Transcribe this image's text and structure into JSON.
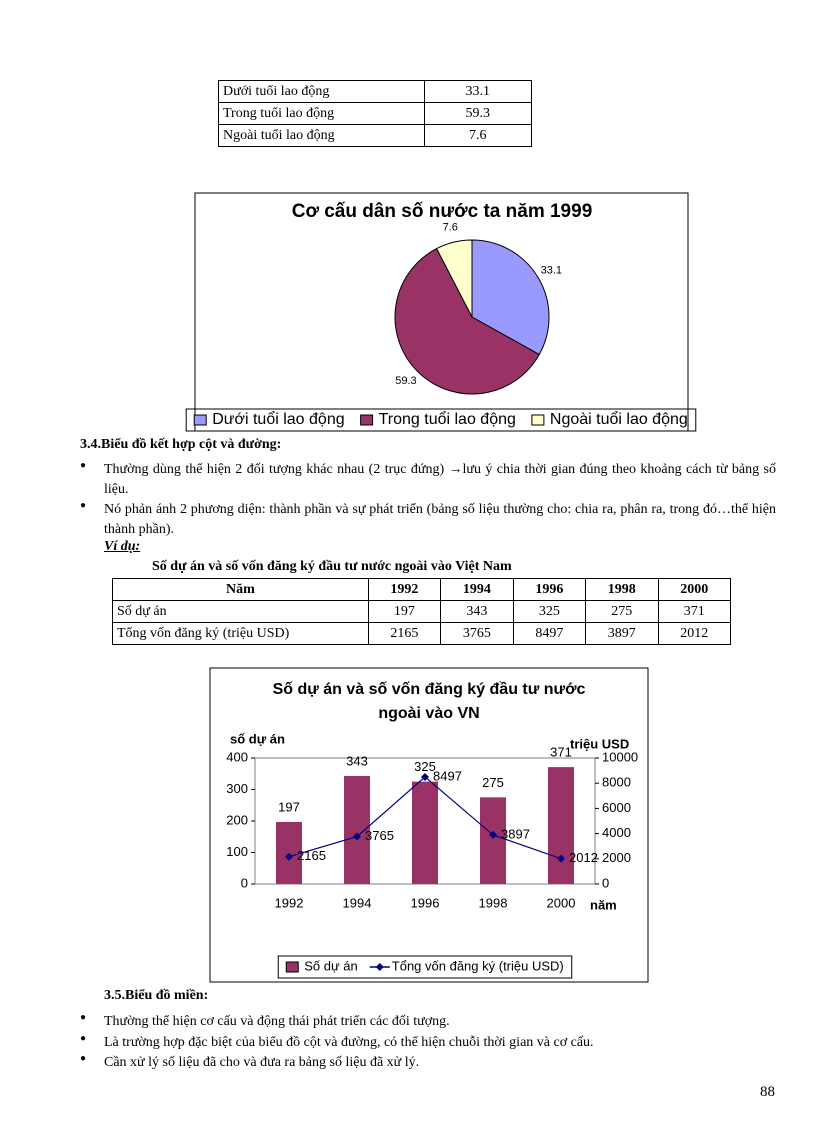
{
  "table1": {
    "rows": [
      [
        "Dưới tuổi lao động",
        "33.1"
      ],
      [
        "Trong tuổi lao động",
        "59.3"
      ],
      [
        "Ngoài tuổi lao động",
        "7.6"
      ]
    ]
  },
  "chart_data": [
    {
      "type": "pie",
      "title": "Cơ cấu dân số nước ta năm 1999",
      "categories": [
        "Dưới tuổi lao động",
        "Trong tuổi lao động",
        "Ngoài tuổi lao động"
      ],
      "values": [
        33.1,
        59.3,
        7.6
      ],
      "colors": [
        "#9999ff",
        "#993366",
        "#ffffcc"
      ],
      "legend": "bottom"
    },
    {
      "type": "bar-line",
      "title": "Số dự án và số vốn đăng ký đầu tư nước ngoài vào VN",
      "ylabel": "số dự án",
      "y2label": "triệu USD",
      "xlabel": "năm",
      "categories": [
        "1992",
        "1994",
        "1996",
        "1998",
        "2000"
      ],
      "series": [
        {
          "name": "Số dự án",
          "color": "#993366",
          "values": [
            197,
            343,
            325,
            275,
            371
          ]
        },
        {
          "name": "Tổng vốn đăng ký (triệu USD)",
          "color": "#000080",
          "axis": "y2",
          "values": [
            2165,
            3765,
            8497,
            3897,
            2012
          ]
        }
      ],
      "ylim": [
        0,
        400
      ],
      "yticks": [
        0,
        100,
        200,
        300,
        400
      ],
      "y2lim": [
        0,
        10000
      ],
      "y2ticks": [
        0,
        2000,
        4000,
        6000,
        8000,
        10000
      ],
      "legend": "bottom"
    }
  ],
  "section_3_4": {
    "heading": "3.4.Biểu đồ kết hợp cột và đường:",
    "bullets": [
      "Thường dùng thể hiện 2 đối tượng khác nhau (2 trục đứng) →lưu ý chia thời gian đúng theo khoảng cách từ bảng số liệu.",
      "Nó phản ánh 2 phương diện: thành phần và sự phát triển (bảng số liệu thường cho: chia ra, phân ra, trong đó…thể hiện thành phần)."
    ],
    "example_label": "Ví dụ:",
    "table_caption": "Số dự án và số vốn đăng ký đầu tư nước ngoài vào Việt Nam",
    "table": {
      "header": [
        "Năm",
        "1992",
        "1994",
        "1996",
        "1998",
        "2000"
      ],
      "rows": [
        [
          "Số dự án",
          "197",
          "343",
          "325",
          "275",
          "371"
        ],
        [
          "Tổng vốn đăng ký (triệu USD)",
          "2165",
          "3765",
          "8497",
          "3897",
          "2012"
        ]
      ]
    }
  },
  "section_3_5": {
    "heading": "3.5.Biểu đồ miền:",
    "bullets": [
      "Thường thể hiện cơ cấu và động thái phát triển các đối tượng.",
      "Là trường hợp đặc biệt của biểu đồ cột và đường, có thể hiện chuỗi thời gian và cơ cấu.",
      "Cần xử lý số liệu đã cho và đưa ra bảng số liệu đã xử lý."
    ]
  },
  "page_number": "88"
}
